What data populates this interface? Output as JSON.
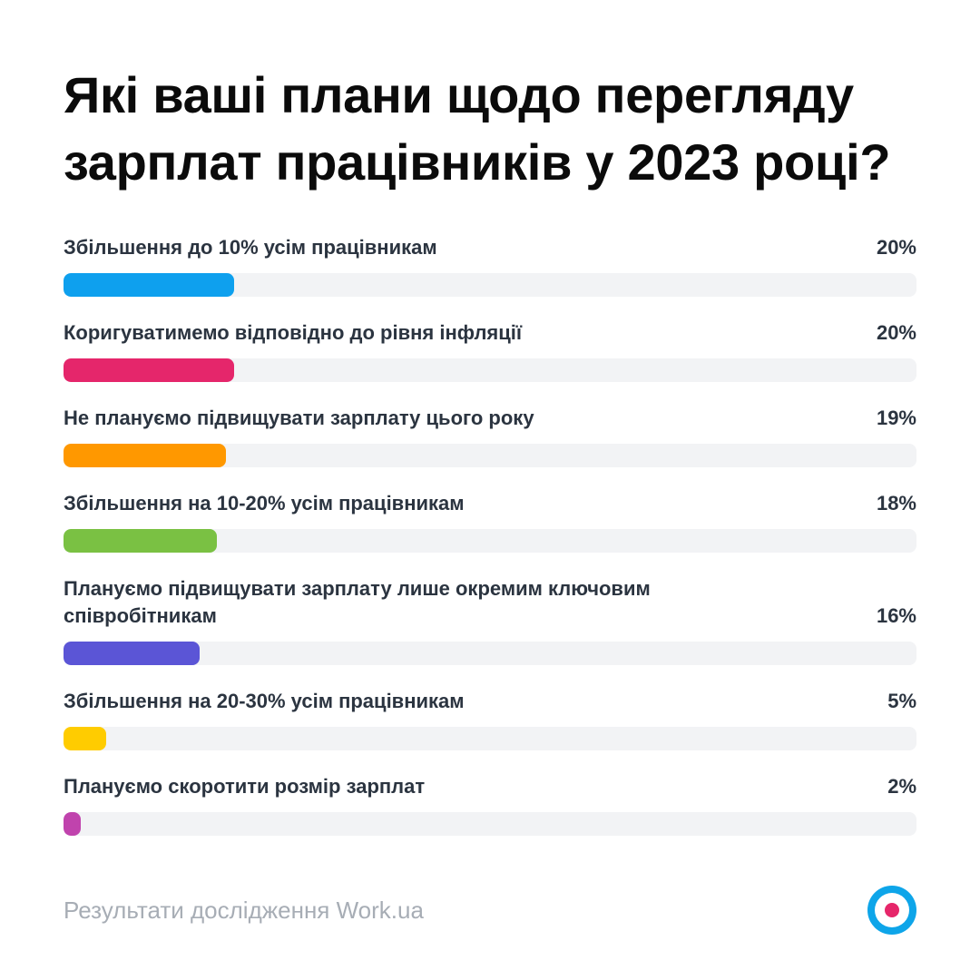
{
  "title": "Які ваші плани щодо перегляду зарплат працівників у 2023 році?",
  "footer": {
    "text": "Результати дослідження Work.ua",
    "logo_icon": "work-ua-logo-icon"
  },
  "chart_data": {
    "type": "bar",
    "orientation": "horizontal",
    "max": 100,
    "unit": "%",
    "categories": [
      "Збільшення до 10% усім працівникам",
      "Коригуватимемо відповідно до рівня інфляції",
      "Не плануємо підвищувати зарплату цього року",
      "Збільшення на 10-20% усім працівникам",
      "Плануємо підвищувати зарплату лише окремим ключовим співробітникам",
      "Збільшення на 20-30% усім працівникам",
      "Плануємо скоротити розмір зарплат"
    ],
    "values": [
      20,
      20,
      19,
      18,
      16,
      5,
      2
    ],
    "value_labels": [
      "20%",
      "20%",
      "19%",
      "18%",
      "16%",
      "5%",
      "2%"
    ],
    "colors": [
      "#0ea0ee",
      "#e5266b",
      "#ff9800",
      "#7ac143",
      "#5b55d6",
      "#ffcc00",
      "#c043ad"
    ]
  }
}
